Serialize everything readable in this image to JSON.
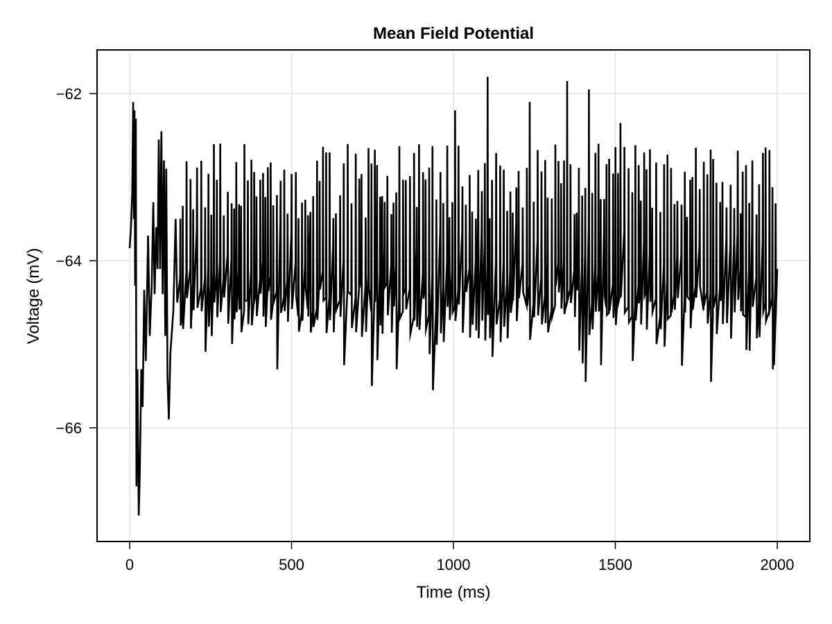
{
  "chart_data": {
    "type": "line",
    "title": "Mean Field Potential",
    "xlabel": "Time (ms)",
    "ylabel": "Voltage (mV)",
    "xlim": [
      -100,
      2100
    ],
    "ylim": [
      -67.55,
      -61.47
    ],
    "xticks": [
      0,
      500,
      1000,
      1500,
      2000
    ],
    "xtick_labels": [
      "0",
      "500",
      "1000",
      "1500",
      "2000"
    ],
    "yticks": [
      -62,
      -64,
      -66
    ],
    "ytick_labels": [
      "−62",
      "−64",
      "−66"
    ],
    "grid": true,
    "legend": null,
    "line_color": "#000000",
    "series": [
      {
        "name": "Mean field potential",
        "description": "Sawtooth-like spiking trace: start ≈ -63.85 mV, initial transient with peaks near -62.1 mV and troughs down to ≈ -67.05 mV within first ~120 ms, then sustained fluctuation mostly between -65.5 and -62.5 mV, ends ≈ -64.1 mV at 2000 ms",
        "x_range": [
          0,
          2000
        ],
        "key_points": [
          {
            "x": 0,
            "y": -63.85
          },
          {
            "x": 12,
            "y": -62.1
          },
          {
            "x": 20,
            "y": -66.7
          },
          {
            "x": 28,
            "y": -67.05
          },
          {
            "x": 60,
            "y": -63.95
          },
          {
            "x": 95,
            "y": -62.55
          },
          {
            "x": 120,
            "y": -65.9
          },
          {
            "x": 280,
            "y": -62.6
          },
          {
            "x": 460,
            "y": -65.3
          },
          {
            "x": 750,
            "y": -65.5
          },
          {
            "x": 940,
            "y": -65.55
          },
          {
            "x": 1100,
            "y": -61.8
          },
          {
            "x": 1355,
            "y": -61.85
          },
          {
            "x": 1410,
            "y": -65.45
          },
          {
            "x": 1415,
            "y": -61.95
          },
          {
            "x": 1800,
            "y": -65.45
          },
          {
            "x": 1985,
            "y": -65.3
          },
          {
            "x": 2000,
            "y": -64.1
          }
        ]
      }
    ]
  }
}
